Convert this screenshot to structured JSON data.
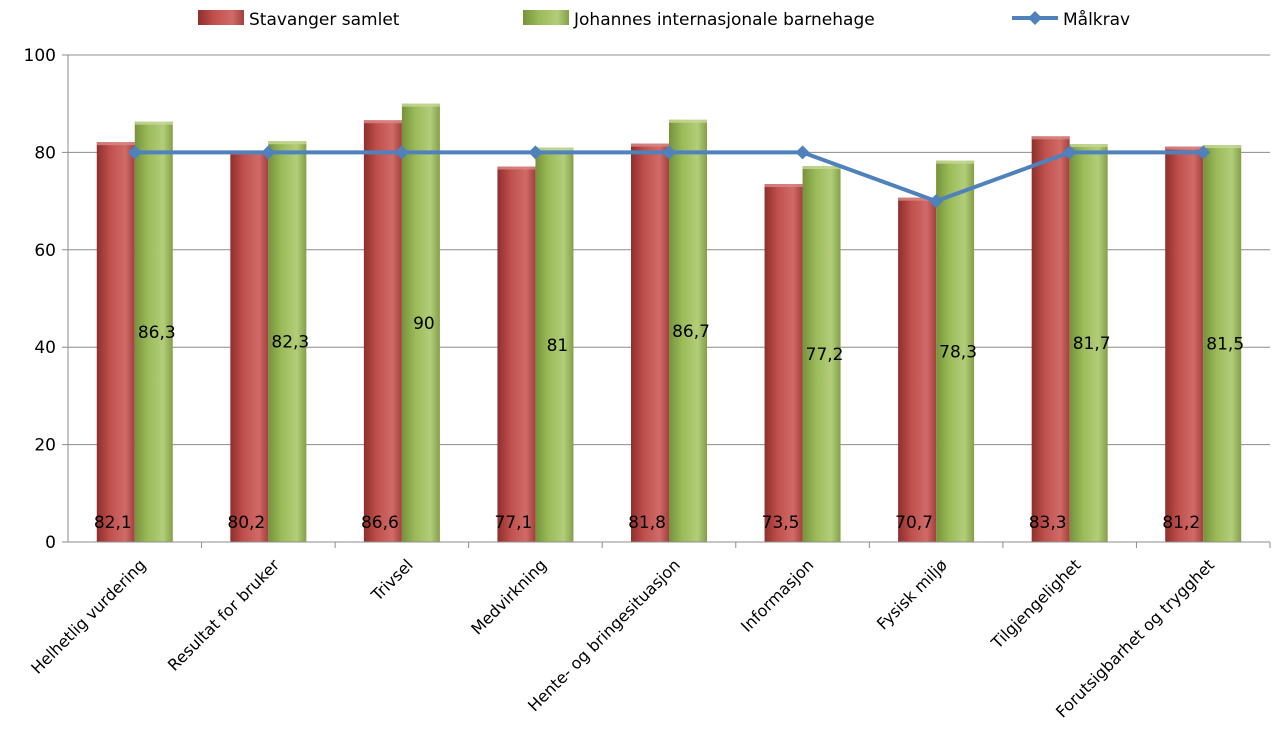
{
  "chart_data": {
    "type": "bar",
    "title": "",
    "xlabel": "",
    "ylabel": "",
    "ylim": [
      0,
      100
    ],
    "yticks": [
      0,
      20,
      40,
      60,
      80,
      100
    ],
    "grid": true,
    "legend_position": "top",
    "categories": [
      "Helhetlig vurdering",
      "Resultat for bruker",
      "Trivsel",
      "Medvirkning",
      "Hente- og bringesituasjon",
      "Informasjon",
      "Fysisk miljø",
      "Tilgjengelighet",
      "Forutsigbarhet og trygghet"
    ],
    "series": [
      {
        "name": "Stavanger samlet",
        "kind": "bar",
        "color": "#C0504D",
        "values": [
          82.1,
          80.2,
          86.6,
          77.1,
          81.8,
          73.5,
          70.7,
          83.3,
          81.2
        ],
        "labels": [
          "82,1",
          "80,2",
          "86,6",
          "77,1",
          "81,8",
          "73,5",
          "70,7",
          "83,3",
          "81,2"
        ]
      },
      {
        "name": "Johannes internasjonale barnehage",
        "kind": "bar",
        "color": "#9BBB59",
        "values": [
          86.3,
          82.3,
          90,
          81,
          86.7,
          77.2,
          78.3,
          81.7,
          81.5
        ],
        "labels": [
          "86,3",
          "82,3",
          "90",
          "81",
          "86,7",
          "77,2",
          "78,3",
          "81,7",
          "81,5"
        ]
      },
      {
        "name": "Målkrav",
        "kind": "line",
        "color": "#4F81BD",
        "values": [
          80,
          80,
          80,
          80,
          80,
          80,
          70,
          80,
          80
        ]
      }
    ]
  }
}
